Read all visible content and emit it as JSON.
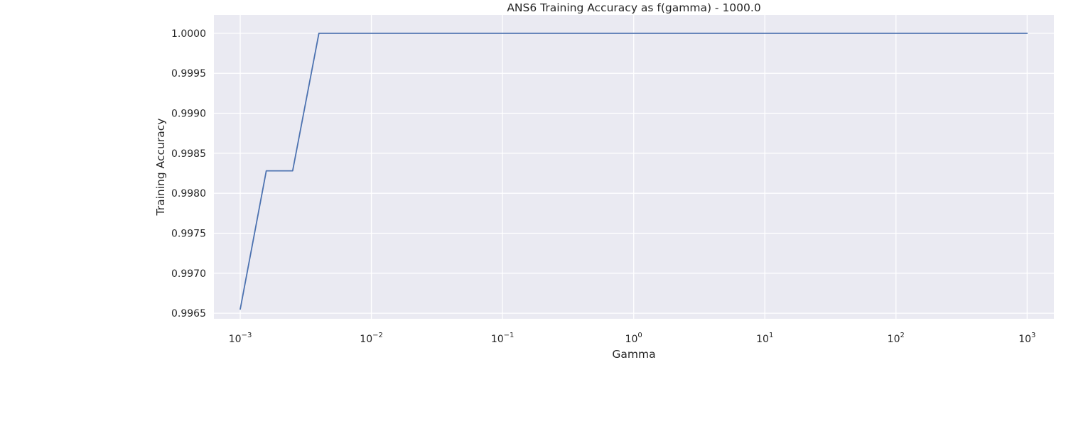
{
  "chart_data": {
    "type": "line",
    "title": "ANS6 Training Accuracy as f(gamma) - 1000.0",
    "xlabel": "Gamma",
    "ylabel": "Training Accuracy",
    "x_scale": "log",
    "xlim": [
      0.00063,
      1600
    ],
    "ylim": [
      0.99643,
      1.00023
    ],
    "grid": true,
    "background_color": "#eaeaf2",
    "grid_color": "#ffffff",
    "line_color": "#4c72b0",
    "x_ticks": [
      {
        "value": 0.001,
        "base": "10",
        "exp": "−3"
      },
      {
        "value": 0.01,
        "base": "10",
        "exp": "−2"
      },
      {
        "value": 0.1,
        "base": "10",
        "exp": "−1"
      },
      {
        "value": 1,
        "base": "10",
        "exp": "0"
      },
      {
        "value": 10,
        "base": "10",
        "exp": "1"
      },
      {
        "value": 100,
        "base": "10",
        "exp": "2"
      },
      {
        "value": 1000,
        "base": "10",
        "exp": "3"
      }
    ],
    "y_ticks": [
      {
        "value": 0.9965,
        "label": "0.9965"
      },
      {
        "value": 0.997,
        "label": "0.9970"
      },
      {
        "value": 0.9975,
        "label": "0.9975"
      },
      {
        "value": 0.998,
        "label": "0.9980"
      },
      {
        "value": 0.9985,
        "label": "0.9985"
      },
      {
        "value": 0.999,
        "label": "0.9990"
      },
      {
        "value": 0.9995,
        "label": "0.9995"
      },
      {
        "value": 1.0,
        "label": "1.0000"
      }
    ],
    "series": [
      {
        "x": [
          0.001,
          0.00158,
          0.00251,
          0.00398,
          0.01,
          0.1,
          1,
          10,
          100,
          1000
        ],
        "y": [
          0.99655,
          0.99828,
          0.99828,
          1.0,
          1.0,
          1.0,
          1.0,
          1.0,
          1.0,
          1.0
        ]
      }
    ]
  }
}
